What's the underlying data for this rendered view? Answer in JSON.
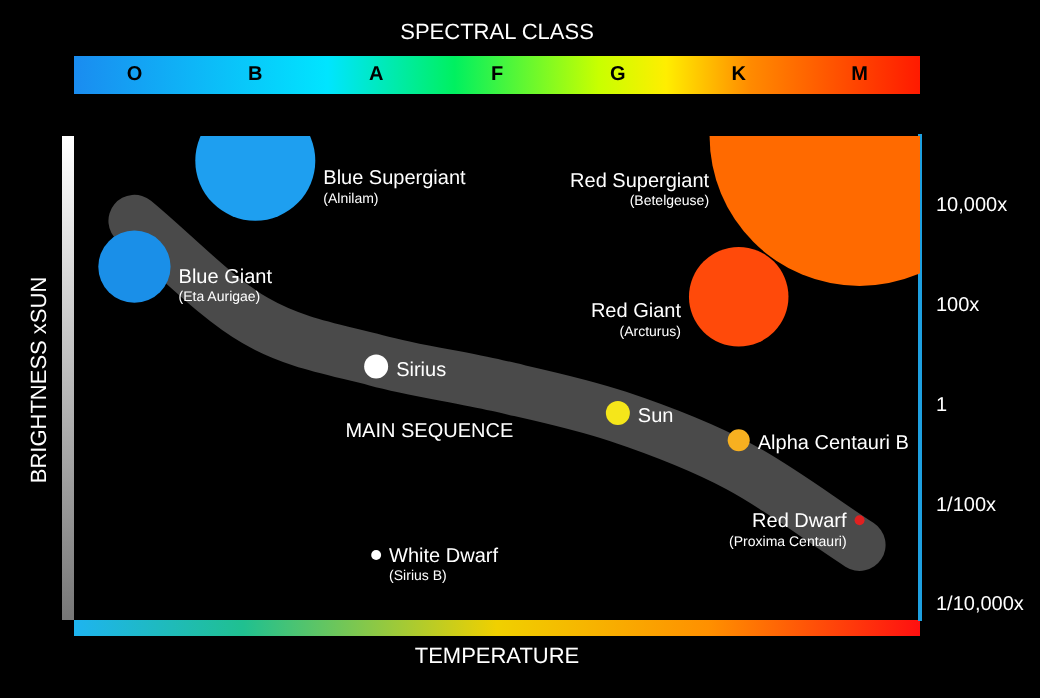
{
  "chart_data": {
    "type": "bubble",
    "x2label": "SPECTRAL CLASS",
    "xlabel": "TEMPERATURE",
    "ylabel": "BRIGHTNESS xSUN",
    "log": "y",
    "categories": [
      "O",
      "B",
      "A",
      "F",
      "G",
      "K",
      "M"
    ],
    "ylim": [
      5e-05,
      250000
    ],
    "yticks": [
      {
        "value": 10000,
        "label": "10,000x"
      },
      {
        "value": 100,
        "label": "100x"
      },
      1,
      {
        "value": 0.01,
        "label": "1/100x"
      },
      {
        "value": 0.0001,
        "label": "1/10,000x"
      }
    ],
    "series": [
      {
        "type": "line",
        "color": "#4a4a4a",
        "values": [
          5000,
          50,
          8,
          2.5,
          0.6,
          0.06,
          0.0016
        ]
      },
      {
        "name": "Blue Supergiant (Alnilam)",
        "color": "#1e9ff0",
        "x": [
          "B"
        ],
        "values": [
          80000
        ],
        "sizes": [
          0.16
        ]
      },
      {
        "name": "Blue Giant (Eta Aurigae)",
        "color": "#1a8fe8",
        "x": [
          "O"
        ],
        "values": [
          600
        ],
        "sizes": [
          0.058
        ]
      },
      {
        "name": "Red Supergiant (Betelgeuse)",
        "color": "#ff6a00",
        "x": [
          "M"
        ],
        "values": [
          250000
        ],
        "sizes": [
          1
        ]
      },
      {
        "name": "Red Giant (Arcturus)",
        "color": "#ff4a0a",
        "x": [
          "K"
        ],
        "values": [
          150
        ],
        "sizes": [
          0.11
        ]
      },
      {
        "name": "Sirius",
        "color": "#ffffff",
        "x": [
          "A"
        ],
        "values": [
          6
        ],
        "sizes": [
          0.0064
        ]
      },
      {
        "name": "Sun",
        "color": "#f5e61a",
        "x": [
          "G"
        ],
        "values": [
          0.7
        ],
        "sizes": [
          0.0064
        ]
      },
      {
        "name": "Alpha Centauri B",
        "color": "#f7b020",
        "x": [
          "K"
        ],
        "values": [
          0.2
        ],
        "sizes": [
          0.0054
        ]
      },
      {
        "name": "Red Dwarf (Proxima Centauri)",
        "color": "#e02020",
        "x": [
          "M"
        ],
        "values": [
          0.005
        ],
        "sizes": [
          0.0011
        ]
      },
      {
        "name": "White Dwarf (Sirius B)",
        "color": "#ffffff",
        "x": [
          "A"
        ],
        "values": [
          0.001
        ],
        "sizes": [
          0.0011
        ]
      }
    ],
    "annotations": [
      "MAIN SEQUENCE"
    ]
  }
}
